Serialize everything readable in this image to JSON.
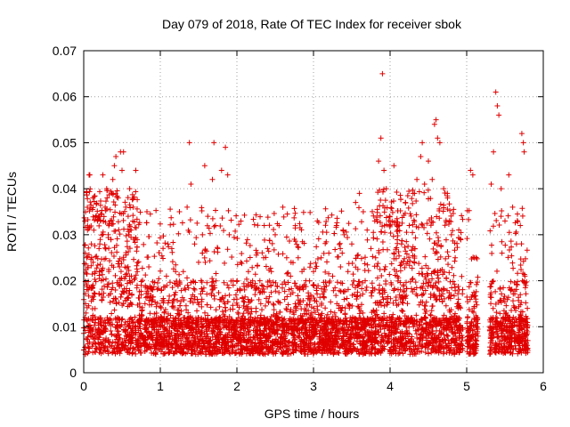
{
  "chart_data": {
    "type": "scatter",
    "title": "Day 079 of 2018, Rate Of TEC Index for receiver sbok",
    "xlabel": "GPS time / hours",
    "ylabel": "ROTI / TECUs",
    "xlim": [
      0,
      6
    ],
    "ylim": [
      0,
      0.07
    ],
    "x_ticks": [
      "0",
      "1",
      "2",
      "3",
      "4",
      "5",
      "6"
    ],
    "y_ticks": [
      "0",
      "0.01",
      "0.02",
      "0.03",
      "0.04",
      "0.05",
      "0.06",
      "0.07"
    ],
    "grid": true,
    "marker": "+",
    "color": "#e00000",
    "series": [
      {
        "name": "ROTI",
        "points": [
          [
            0.02,
            0.012
          ],
          [
            0.04,
            0.025
          ],
          [
            0.05,
            0.031
          ],
          [
            0.06,
            0.018
          ],
          [
            0.07,
            0.043
          ],
          [
            0.08,
            0.043
          ],
          [
            0.1,
            0.028
          ],
          [
            0.12,
            0.038
          ],
          [
            0.15,
            0.022
          ],
          [
            0.18,
            0.033
          ],
          [
            0.2,
            0.027
          ],
          [
            0.22,
            0.033
          ],
          [
            0.25,
            0.043
          ],
          [
            0.28,
            0.036
          ],
          [
            0.3,
            0.04
          ],
          [
            0.32,
            0.03
          ],
          [
            0.35,
            0.033
          ],
          [
            0.38,
            0.042
          ],
          [
            0.4,
            0.045
          ],
          [
            0.42,
            0.047
          ],
          [
            0.45,
            0.038
          ],
          [
            0.48,
            0.048
          ],
          [
            0.5,
            0.044
          ],
          [
            0.52,
            0.048
          ],
          [
            0.55,
            0.036
          ],
          [
            0.58,
            0.034
          ],
          [
            0.6,
            0.04
          ],
          [
            0.62,
            0.031
          ],
          [
            0.65,
            0.029
          ],
          [
            0.68,
            0.044
          ],
          [
            0.7,
            0.022
          ],
          [
            0.75,
            0.019
          ],
          [
            0.8,
            0.015
          ],
          [
            0.85,
            0.023
          ],
          [
            0.9,
            0.018
          ],
          [
            0.95,
            0.012
          ],
          [
            1.0,
            0.008
          ],
          [
            1.05,
            0.013
          ],
          [
            1.08,
            0.021
          ],
          [
            1.1,
            0.028
          ],
          [
            1.15,
            0.027
          ],
          [
            1.2,
            0.022
          ],
          [
            1.25,
            0.035
          ],
          [
            1.3,
            0.022
          ],
          [
            1.35,
            0.036
          ],
          [
            1.38,
            0.05
          ],
          [
            1.4,
            0.041
          ],
          [
            1.45,
            0.018
          ],
          [
            1.5,
            0.024
          ],
          [
            1.55,
            0.03
          ],
          [
            1.58,
            0.045
          ],
          [
            1.62,
            0.034
          ],
          [
            1.68,
            0.042
          ],
          [
            1.7,
            0.05
          ],
          [
            1.72,
            0.032
          ],
          [
            1.75,
            0.027
          ],
          [
            1.8,
            0.044
          ],
          [
            1.85,
            0.049
          ],
          [
            1.88,
            0.043
          ],
          [
            1.9,
            0.03
          ],
          [
            1.95,
            0.02
          ],
          [
            2.0,
            0.016
          ],
          [
            2.05,
            0.024
          ],
          [
            2.1,
            0.018
          ],
          [
            2.15,
            0.022
          ],
          [
            2.2,
            0.019
          ],
          [
            2.25,
            0.014
          ],
          [
            2.3,
            0.02
          ],
          [
            2.35,
            0.025
          ],
          [
            2.4,
            0.027
          ],
          [
            2.45,
            0.022
          ],
          [
            2.5,
            0.03
          ],
          [
            2.55,
            0.032
          ],
          [
            2.6,
            0.036
          ],
          [
            2.65,
            0.025
          ],
          [
            2.7,
            0.021
          ],
          [
            2.75,
            0.029
          ],
          [
            2.8,
            0.025
          ],
          [
            2.85,
            0.022
          ],
          [
            2.9,
            0.02
          ],
          [
            2.95,
            0.016
          ],
          [
            3.0,
            0.022
          ],
          [
            3.05,
            0.033
          ],
          [
            3.1,
            0.025
          ],
          [
            3.15,
            0.018
          ],
          [
            3.2,
            0.026
          ],
          [
            3.25,
            0.021
          ],
          [
            3.3,
            0.032
          ],
          [
            3.35,
            0.027
          ],
          [
            3.4,
            0.03
          ],
          [
            3.45,
            0.022
          ],
          [
            3.5,
            0.028
          ],
          [
            3.55,
            0.037
          ],
          [
            3.6,
            0.039
          ],
          [
            3.65,
            0.035
          ],
          [
            3.7,
            0.031
          ],
          [
            3.75,
            0.027
          ],
          [
            3.8,
            0.033
          ],
          [
            3.85,
            0.046
          ],
          [
            3.88,
            0.051
          ],
          [
            3.9,
            0.065
          ],
          [
            3.92,
            0.044
          ],
          [
            3.95,
            0.04
          ],
          [
            4.0,
            0.033
          ],
          [
            4.05,
            0.045
          ],
          [
            4.1,
            0.031
          ],
          [
            4.15,
            0.028
          ],
          [
            4.2,
            0.037
          ],
          [
            4.25,
            0.032
          ],
          [
            4.3,
            0.039
          ],
          [
            4.35,
            0.042
          ],
          [
            4.4,
            0.047
          ],
          [
            4.42,
            0.05
          ],
          [
            4.45,
            0.041
          ],
          [
            4.5,
            0.046
          ],
          [
            4.55,
            0.042
          ],
          [
            4.58,
            0.054
          ],
          [
            4.6,
            0.055
          ],
          [
            4.62,
            0.051
          ],
          [
            4.65,
            0.05
          ],
          [
            4.7,
            0.04
          ],
          [
            4.75,
            0.038
          ],
          [
            4.8,
            0.03
          ],
          [
            4.85,
            0.025
          ],
          [
            4.9,
            0.018
          ],
          [
            5.05,
            0.044
          ],
          [
            5.08,
            0.043
          ],
          [
            5.1,
            0.025
          ],
          [
            5.12,
            0.016
          ],
          [
            5.32,
            0.041
          ],
          [
            5.35,
            0.048
          ],
          [
            5.38,
            0.061
          ],
          [
            5.4,
            0.058
          ],
          [
            5.42,
            0.056
          ],
          [
            5.45,
            0.04
          ],
          [
            5.5,
            0.033
          ],
          [
            5.55,
            0.043
          ],
          [
            5.6,
            0.036
          ],
          [
            5.65,
            0.028
          ],
          [
            5.7,
            0.032
          ],
          [
            5.72,
            0.052
          ],
          [
            5.74,
            0.05
          ],
          [
            5.75,
            0.048
          ],
          [
            5.76,
            0.021
          ]
        ],
        "note": "dense cloud of low values (about 0.003–0.015) spans the full 0–5.8 h range with gaps near 4.95–5.05 and 5.15–5.3 h"
      }
    ]
  }
}
